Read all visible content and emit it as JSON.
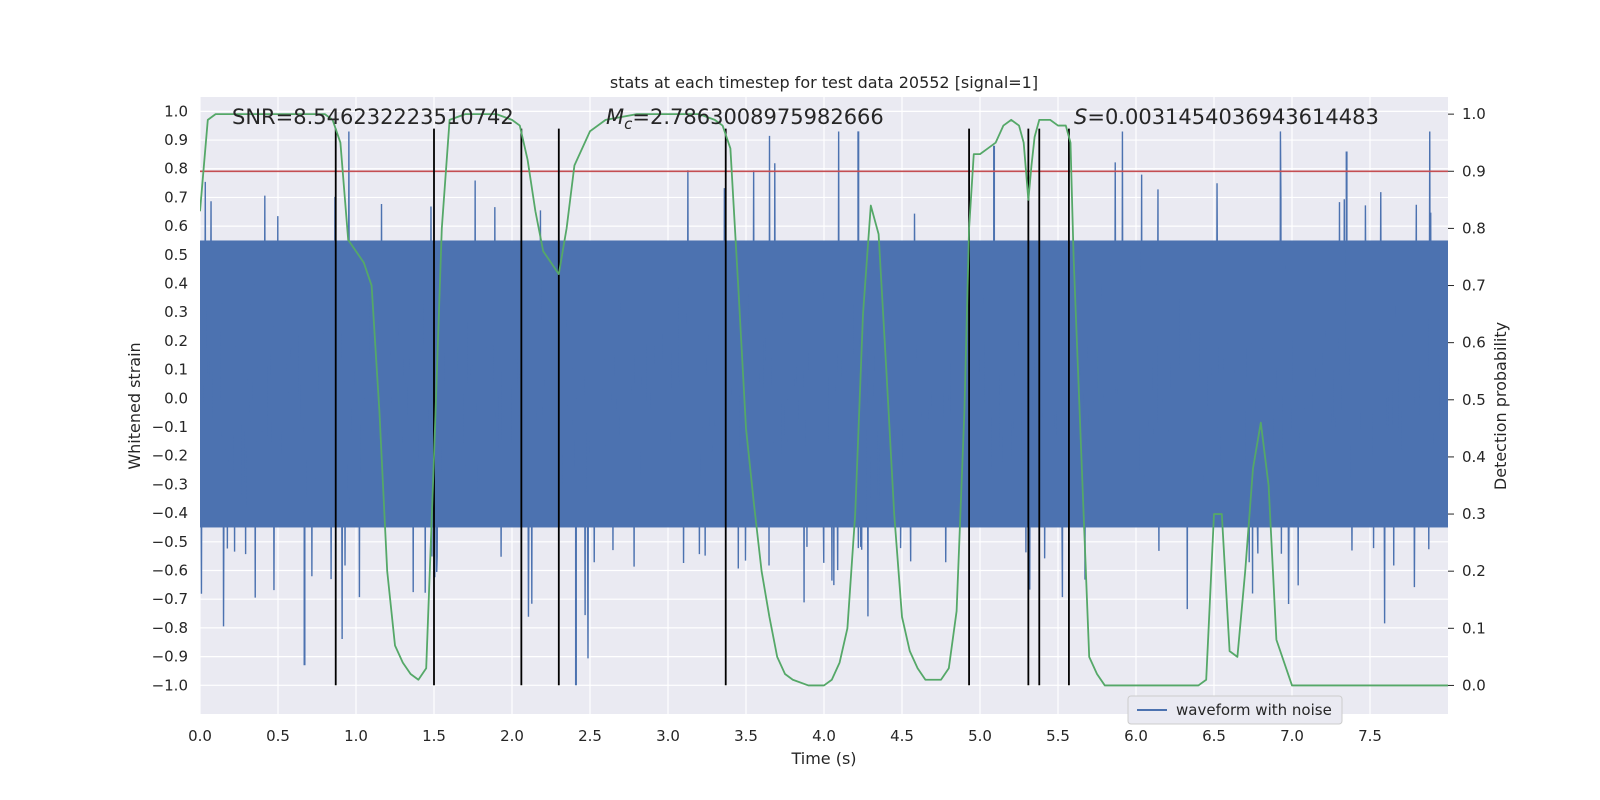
{
  "chart_data": {
    "type": "line",
    "title": "stats at each timestep for test data 20552 [signal=1]",
    "xlabel": "Time (s)",
    "ylabel": "Whitened strain",
    "y2label": "Detection probability",
    "xlim": [
      0.0,
      8.0
    ],
    "ylim": [
      -1.1,
      1.05
    ],
    "y2lim": [
      -0.05,
      1.03
    ],
    "xticks": [
      "0.0",
      "0.5",
      "1.0",
      "1.5",
      "2.0",
      "2.5",
      "3.0",
      "3.5",
      "4.0",
      "4.5",
      "5.0",
      "5.5",
      "6.0",
      "6.5",
      "7.0",
      "7.5"
    ],
    "yticks": [
      "1.0",
      "0.9",
      "0.8",
      "0.7",
      "0.6",
      "0.5",
      "0.4",
      "0.3",
      "0.2",
      "0.1",
      "0.0",
      "-0.1",
      "-0.2",
      "-0.3",
      "-0.4",
      "-0.5",
      "-0.6",
      "-0.7",
      "-0.8",
      "-0.9",
      "-1.0"
    ],
    "y2ticks": [
      "1.0",
      "0.9",
      "0.8",
      "0.7",
      "0.6",
      "0.5",
      "0.4",
      "0.3",
      "0.2",
      "0.1",
      "0.0"
    ],
    "grid": true,
    "legend": {
      "position": "bottom-center",
      "entries": [
        "waveform with noise"
      ]
    },
    "annotations": {
      "snr": "SNR=8.546232223510742",
      "mc_value": "=2.7863008975982666",
      "s_value": "=0.0031454036943614483"
    },
    "threshold": {
      "y2": 0.9,
      "color": "#c44e52"
    },
    "vlines_x": [
      0.87,
      1.5,
      2.06,
      2.3,
      3.37,
      4.93,
      5.31,
      5.38,
      5.57
    ],
    "series": [
      {
        "name": "waveform with noise",
        "axis": "left",
        "color": "#4c72b0",
        "x_range": [
          0.0,
          8.0
        ],
        "band_envelope": [
          {
            "x": 0.0,
            "upper": 0.55,
            "lower": -0.45
          },
          {
            "x": 8.0,
            "upper": 0.55,
            "lower": -0.45
          }
        ],
        "extremes": [
          {
            "x": 0.67,
            "y": -0.93
          },
          {
            "x": 2.41,
            "y": -1.0
          },
          {
            "x": 7.35,
            "y": 0.86
          },
          {
            "x": 5.09,
            "y": 0.88
          },
          {
            "x": 4.22,
            "y": 0.93
          }
        ]
      },
      {
        "name": "Detection probability",
        "axis": "right",
        "color": "#55a868",
        "x": [
          0.0,
          0.05,
          0.1,
          0.2,
          0.4,
          0.6,
          0.7,
          0.8,
          0.85,
          0.9,
          0.95,
          1.0,
          1.05,
          1.1,
          1.15,
          1.2,
          1.25,
          1.3,
          1.35,
          1.4,
          1.45,
          1.5,
          1.55,
          1.6,
          1.7,
          1.8,
          1.9,
          2.0,
          2.05,
          2.1,
          2.15,
          2.2,
          2.25,
          2.3,
          2.35,
          2.4,
          2.5,
          2.6,
          2.8,
          3.0,
          3.2,
          3.3,
          3.35,
          3.4,
          3.45,
          3.5,
          3.55,
          3.6,
          3.65,
          3.7,
          3.75,
          3.8,
          3.9,
          3.95,
          4.0,
          4.05,
          4.1,
          4.15,
          4.2,
          4.25,
          4.3,
          4.35,
          4.4,
          4.45,
          4.5,
          4.55,
          4.6,
          4.65,
          4.7,
          4.75,
          4.8,
          4.85,
          4.9,
          4.93,
          4.96,
          5.0,
          5.05,
          5.1,
          5.15,
          5.2,
          5.25,
          5.28,
          5.31,
          5.33,
          5.35,
          5.38,
          5.4,
          5.45,
          5.5,
          5.55,
          5.58,
          5.6,
          5.65,
          5.7,
          5.75,
          5.8,
          5.9,
          6.0,
          6.1,
          6.2,
          6.3,
          6.4,
          6.45,
          6.5,
          6.55,
          6.6,
          6.65,
          6.7,
          6.75,
          6.8,
          6.85,
          6.9,
          7.0,
          7.5,
          7.8,
          7.9,
          8.0
        ],
        "values": [
          0.83,
          0.99,
          1.0,
          1.0,
          1.0,
          1.0,
          1.0,
          1.0,
          0.99,
          0.95,
          0.78,
          0.76,
          0.74,
          0.7,
          0.48,
          0.2,
          0.07,
          0.04,
          0.02,
          0.01,
          0.03,
          0.4,
          0.8,
          0.99,
          1.0,
          1.0,
          1.0,
          0.99,
          0.98,
          0.92,
          0.83,
          0.76,
          0.74,
          0.72,
          0.8,
          0.91,
          0.97,
          0.99,
          1.0,
          1.0,
          1.0,
          0.99,
          0.98,
          0.94,
          0.7,
          0.45,
          0.32,
          0.2,
          0.12,
          0.05,
          0.02,
          0.01,
          0.0,
          0.0,
          0.0,
          0.01,
          0.04,
          0.1,
          0.3,
          0.65,
          0.84,
          0.79,
          0.55,
          0.3,
          0.12,
          0.06,
          0.03,
          0.01,
          0.01,
          0.01,
          0.03,
          0.13,
          0.48,
          0.8,
          0.93,
          0.93,
          0.94,
          0.95,
          0.98,
          0.99,
          0.98,
          0.95,
          0.85,
          0.91,
          0.96,
          0.99,
          0.99,
          0.99,
          0.98,
          0.98,
          0.95,
          0.75,
          0.4,
          0.05,
          0.02,
          0.0,
          0.0,
          0.0,
          0.0,
          0.0,
          0.0,
          0.0,
          0.01,
          0.3,
          0.3,
          0.06,
          0.05,
          0.2,
          0.38,
          0.46,
          0.35,
          0.08,
          0.0,
          0.0,
          0.0,
          0.0,
          0.0
        ]
      }
    ]
  }
}
